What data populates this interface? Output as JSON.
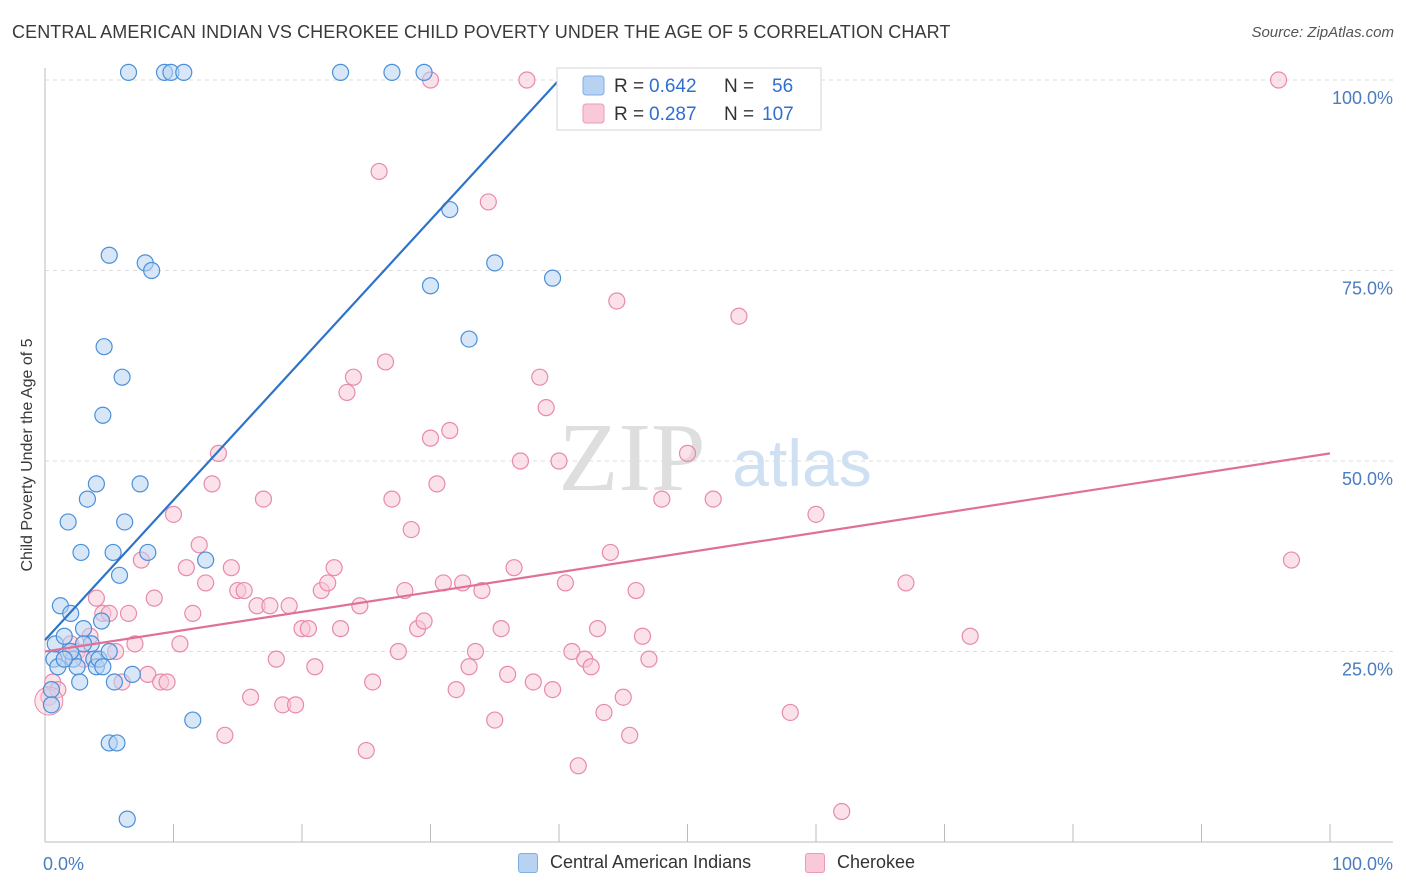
{
  "header": {
    "title": "CENTRAL AMERICAN INDIAN VS CHEROKEE CHILD POVERTY UNDER THE AGE OF 5 CORRELATION CHART",
    "source": "Source: ZipAtlas.com"
  },
  "watermark": {
    "zip": "ZIP",
    "atlas": "atlas"
  },
  "colors": {
    "blue": "#4a90d9",
    "blue_fill": "#b8d3f2",
    "blue_line": "#2f73c9",
    "pink": "#e88aaa",
    "pink_fill": "#f8c9d8",
    "pink_line": "#e0709a",
    "axis_text": "#4a7cc0",
    "grid": "#dddddd"
  },
  "legend": {
    "rows": [
      {
        "r_label": "R =",
        "r_value": "0.642",
        "n_label": "N =",
        "n_value": "56"
      },
      {
        "r_label": "R =",
        "r_value": "0.287",
        "n_label": "N =",
        "n_value": "107"
      }
    ]
  },
  "chart_data": {
    "type": "scatter",
    "title": "CENTRAL AMERICAN INDIAN VS CHEROKEE CHILD POVERTY UNDER THE AGE OF 5 CORRELATION CHART",
    "xlabel": "",
    "ylabel": "Child Poverty Under the Age of 5",
    "xlim": [
      0,
      100
    ],
    "ylim": [
      0,
      100
    ],
    "x_tick_labels": [
      "0.0%",
      "100.0%"
    ],
    "y_ticks": [
      25,
      50,
      75,
      100
    ],
    "y_tick_labels": [
      "25.0%",
      "50.0%",
      "75.0%",
      "100.0%"
    ],
    "grid": true,
    "legend_position": "top-center",
    "series": [
      {
        "name": "Central American Indians",
        "r": 0.642,
        "n": 56,
        "trend": {
          "x": [
            0,
            40
          ],
          "y": [
            26.5,
            100
          ]
        },
        "points": [
          [
            0.5,
            20
          ],
          [
            0.5,
            18
          ],
          [
            0.7,
            24
          ],
          [
            0.8,
            26
          ],
          [
            1,
            23
          ],
          [
            1.2,
            31
          ],
          [
            1.5,
            27
          ],
          [
            1.8,
            42
          ],
          [
            2,
            30
          ],
          [
            2.2,
            24
          ],
          [
            2.5,
            23
          ],
          [
            2.7,
            21
          ],
          [
            2.8,
            38
          ],
          [
            3,
            28
          ],
          [
            3.3,
            45
          ],
          [
            3.6,
            26
          ],
          [
            3.8,
            24
          ],
          [
            4,
            47
          ],
          [
            4,
            23
          ],
          [
            4.2,
            24
          ],
          [
            4.4,
            29
          ],
          [
            4.5,
            56
          ],
          [
            4.6,
            65
          ],
          [
            5,
            77
          ],
          [
            5,
            13
          ],
          [
            5.3,
            38
          ],
          [
            5.4,
            21
          ],
          [
            5.6,
            13
          ],
          [
            5.8,
            35
          ],
          [
            6,
            61
          ],
          [
            6.2,
            42
          ],
          [
            6.4,
            3
          ],
          [
            6.5,
            101
          ],
          [
            6.8,
            22
          ],
          [
            7.4,
            47
          ],
          [
            7.8,
            76
          ],
          [
            8,
            38
          ],
          [
            8.3,
            75
          ],
          [
            9.3,
            101
          ],
          [
            9.8,
            101
          ],
          [
            10.8,
            101
          ],
          [
            11.5,
            16
          ],
          [
            12.5,
            37
          ],
          [
            23,
            101
          ],
          [
            27,
            101
          ],
          [
            29.5,
            101
          ],
          [
            30,
            73
          ],
          [
            31.5,
            83
          ],
          [
            33,
            66
          ],
          [
            35,
            76
          ],
          [
            39.5,
            74
          ],
          [
            2,
            25
          ],
          [
            1.5,
            24
          ],
          [
            3,
            26
          ],
          [
            4.5,
            23
          ],
          [
            5,
            25
          ]
        ]
      },
      {
        "name": "Cherokee",
        "r": 0.287,
        "n": 107,
        "trend": {
          "x": [
            0,
            100
          ],
          "y": [
            25,
            51
          ]
        },
        "points": [
          [
            0.3,
            19
          ],
          [
            0.6,
            21
          ],
          [
            1,
            20
          ],
          [
            1.5,
            24
          ],
          [
            2,
            26
          ],
          [
            2.5,
            25
          ],
          [
            3,
            24
          ],
          [
            3.5,
            27
          ],
          [
            4,
            32
          ],
          [
            4.5,
            30
          ],
          [
            5,
            30
          ],
          [
            5.5,
            25
          ],
          [
            6,
            21
          ],
          [
            6.5,
            30
          ],
          [
            7,
            26
          ],
          [
            7.5,
            37
          ],
          [
            8,
            22
          ],
          [
            8.5,
            32
          ],
          [
            9,
            21
          ],
          [
            9.5,
            21
          ],
          [
            10,
            43
          ],
          [
            10.5,
            26
          ],
          [
            11,
            36
          ],
          [
            11.5,
            30
          ],
          [
            12,
            39
          ],
          [
            12.5,
            34
          ],
          [
            13,
            47
          ],
          [
            13.5,
            51
          ],
          [
            14,
            14
          ],
          [
            14.5,
            36
          ],
          [
            15,
            33
          ],
          [
            15.5,
            33
          ],
          [
            16,
            19
          ],
          [
            16.5,
            31
          ],
          [
            17,
            45
          ],
          [
            17.5,
            31
          ],
          [
            18,
            24
          ],
          [
            18.5,
            18
          ],
          [
            19,
            31
          ],
          [
            19.5,
            18
          ],
          [
            20,
            28
          ],
          [
            20.5,
            28
          ],
          [
            21,
            23
          ],
          [
            21.5,
            33
          ],
          [
            22,
            34
          ],
          [
            22.5,
            36
          ],
          [
            23,
            28
          ],
          [
            23.5,
            59
          ],
          [
            24,
            61
          ],
          [
            24.5,
            31
          ],
          [
            25,
            12
          ],
          [
            25.5,
            21
          ],
          [
            26,
            88
          ],
          [
            26.5,
            63
          ],
          [
            27,
            45
          ],
          [
            27.5,
            25
          ],
          [
            28,
            33
          ],
          [
            28.5,
            41
          ],
          [
            29,
            28
          ],
          [
            29.5,
            29
          ],
          [
            30,
            53
          ],
          [
            30.5,
            47
          ],
          [
            31,
            34
          ],
          [
            31.5,
            54
          ],
          [
            32,
            20
          ],
          [
            32.5,
            34
          ],
          [
            33,
            23
          ],
          [
            33.5,
            25
          ],
          [
            34,
            33
          ],
          [
            34.5,
            84
          ],
          [
            35,
            16
          ],
          [
            35.5,
            28
          ],
          [
            36,
            22
          ],
          [
            36.5,
            36
          ],
          [
            37,
            50
          ],
          [
            37.5,
            100
          ],
          [
            38,
            21
          ],
          [
            38.5,
            61
          ],
          [
            39,
            57
          ],
          [
            39.5,
            20
          ],
          [
            40,
            50
          ],
          [
            40.5,
            34
          ],
          [
            41,
            25
          ],
          [
            41.5,
            10
          ],
          [
            42,
            24
          ],
          [
            42.5,
            23
          ],
          [
            43,
            28
          ],
          [
            43.5,
            17
          ],
          [
            44,
            38
          ],
          [
            44.5,
            71
          ],
          [
            45,
            19
          ],
          [
            45.5,
            14
          ],
          [
            46,
            33
          ],
          [
            46.5,
            27
          ],
          [
            47,
            24
          ],
          [
            48,
            45
          ],
          [
            50,
            51
          ],
          [
            52,
            45
          ],
          [
            54,
            69
          ],
          [
            58,
            17
          ],
          [
            60,
            43
          ],
          [
            62,
            4
          ],
          [
            67,
            34
          ],
          [
            72,
            27
          ],
          [
            96,
            100
          ],
          [
            97,
            37
          ],
          [
            30,
            100
          ]
        ]
      }
    ]
  }
}
